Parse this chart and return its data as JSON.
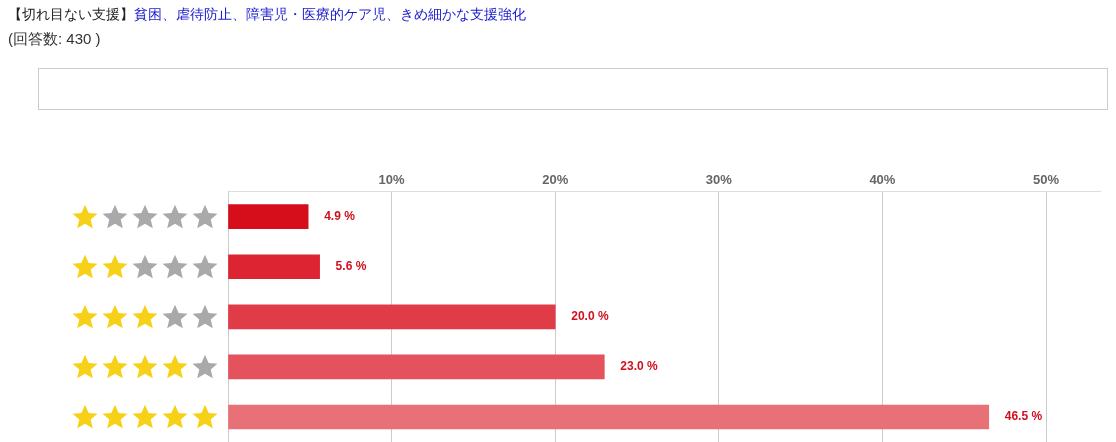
{
  "chart_data": {
    "type": "bar",
    "orientation": "horizontal",
    "title": "【切れ目ない支援】",
    "subtitle": "貧困、虐待防止、障害児・医療的ケア児、きめ細かな支援強化",
    "annotations": [
      "(回答数: 430 )"
    ],
    "categories": [
      null,
      null,
      null,
      null,
      null
    ],
    "values": [
      4.9,
      5.6,
      20.0,
      23.0,
      46.5
    ],
    "value_labels": [
      "4.9 %",
      "5.6 %",
      "20.0 %",
      "23.0 %",
      "46.5 %"
    ],
    "colors": [
      "#d60d1b",
      "#dc2433",
      "#e03c48",
      "#e4535d",
      "#e87077"
    ],
    "xlim": [
      0,
      53.3
    ],
    "xticks": [
      {
        "value": 0,
        "label": null
      },
      {
        "value": 10,
        "label": "10%"
      },
      {
        "value": 20,
        "label": "20%"
      },
      {
        "value": 30,
        "label": "30%"
      },
      {
        "value": 40,
        "label": "40%"
      },
      {
        "value": 50,
        "label": "50%"
      }
    ],
    "grid": "x",
    "legend": false
  }
}
